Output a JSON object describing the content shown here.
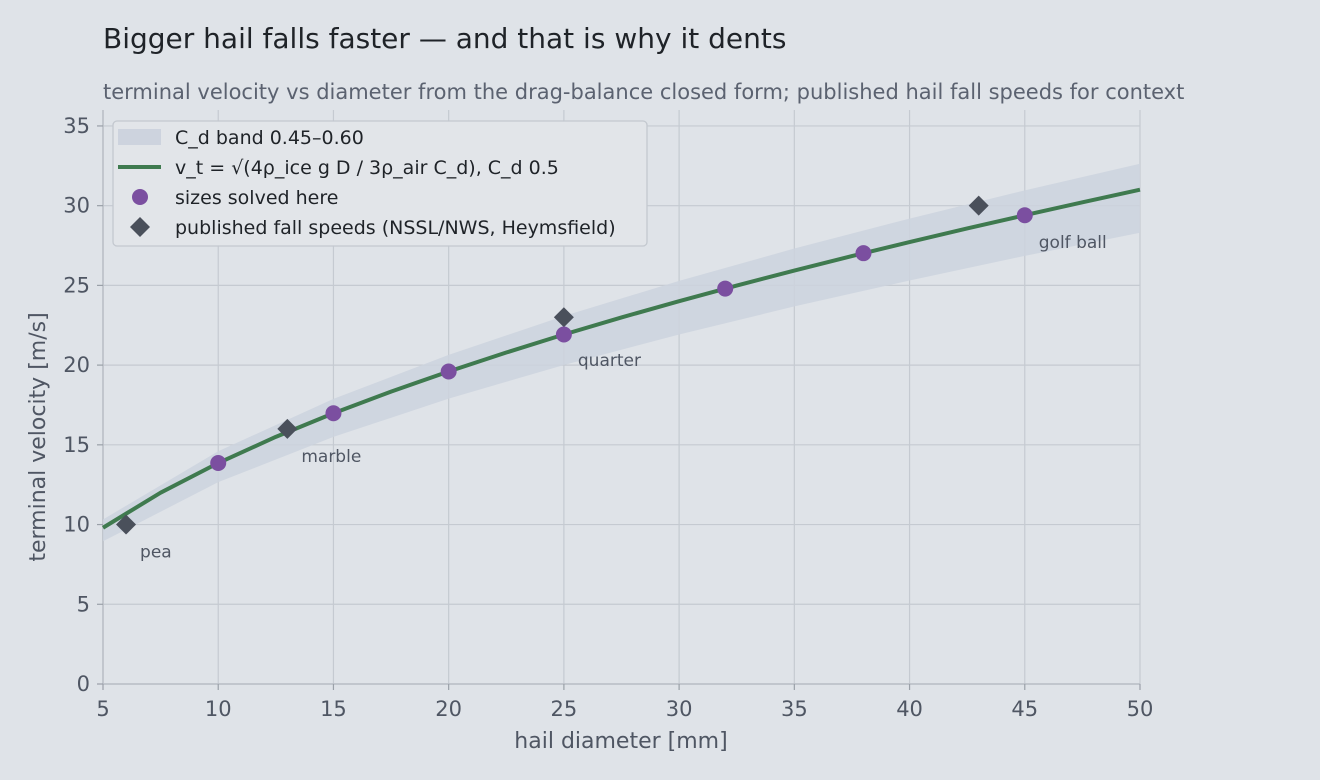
{
  "chart_data": {
    "type": "line",
    "title": "Bigger hail falls faster — and that is why it dents",
    "subtitle": "terminal velocity vs diameter from the drag-balance closed form; published hail fall speeds for context",
    "xlabel": "hail diameter  [mm]",
    "ylabel": "terminal velocity  [m/s]",
    "xlim": [
      5,
      50
    ],
    "ylim": [
      0,
      36
    ],
    "xticks": [
      5,
      10,
      15,
      20,
      25,
      30,
      35,
      40,
      45,
      50
    ],
    "yticks": [
      0,
      5,
      10,
      15,
      20,
      25,
      30,
      35
    ],
    "grid": true,
    "legend_position": "top-left",
    "series": [
      {
        "kind": "band",
        "name": "C_d band 0.45–0.60",
        "color": "#cdd3de",
        "x": [
          5,
          10,
          15,
          20,
          25,
          30,
          35,
          40,
          45,
          50
        ],
        "lower": [
          8.95,
          12.66,
          15.5,
          17.9,
          20.01,
          21.92,
          23.68,
          25.31,
          26.85,
          28.3
        ],
        "upper": [
          10.32,
          14.6,
          17.88,
          20.64,
          23.08,
          25.28,
          27.31,
          29.19,
          30.96,
          32.63
        ]
      },
      {
        "kind": "line",
        "name": "v_t = √(4ρ_ice g D / 3ρ_air C_d),  C_d 0.5",
        "color": "#3f7a4f",
        "x": [
          5,
          7.5,
          10,
          12.5,
          15,
          17.5,
          20,
          22.5,
          25,
          27.5,
          30,
          32.5,
          35,
          37.5,
          40,
          42.5,
          45,
          47.5,
          50
        ],
        "y": [
          9.8,
          12.0,
          13.86,
          15.5,
          16.98,
          18.34,
          19.6,
          20.79,
          21.92,
          22.99,
          24.01,
          24.99,
          25.93,
          26.84,
          27.72,
          28.57,
          29.4,
          30.21,
          31.0
        ]
      },
      {
        "kind": "scatter",
        "name": "sizes solved here",
        "color": "#7b4fa0",
        "marker": "circle",
        "x": [
          10,
          15,
          20,
          25,
          32,
          38,
          45
        ],
        "y": [
          13.86,
          16.98,
          19.6,
          21.92,
          24.8,
          27.02,
          29.4
        ]
      },
      {
        "kind": "scatter",
        "name": "published fall speeds (NSSL/NWS, Heymsfield)",
        "color": "#4a505b",
        "marker": "diamond",
        "x": [
          6,
          13,
          25,
          43
        ],
        "y": [
          10,
          16,
          23,
          30
        ]
      }
    ],
    "annotations": [
      {
        "text": "pea",
        "x": 6,
        "y": 10
      },
      {
        "text": "marble",
        "x": 13,
        "y": 16
      },
      {
        "text": "quarter",
        "x": 25,
        "y": 22
      },
      {
        "text": "golf ball",
        "x": 45,
        "y": 29.4
      }
    ]
  }
}
